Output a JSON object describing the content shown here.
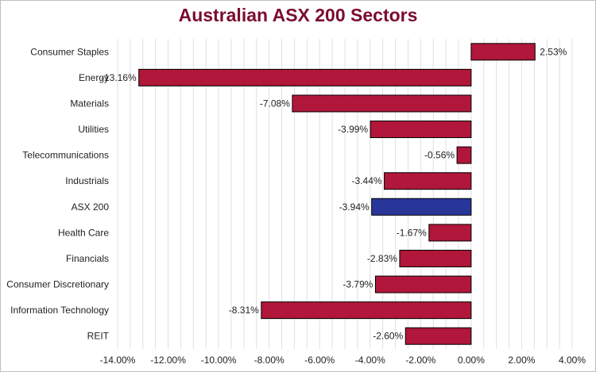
{
  "colors": {
    "bar": "#b0173a",
    "highlight": "#28369a",
    "bar_stroke": "#000000",
    "gridline": "#e0e0e0",
    "title": "#7b0c2e"
  },
  "chart_data": {
    "type": "bar",
    "orientation": "horizontal",
    "title": "Australian ASX 200 Sectors",
    "xlabel": "",
    "ylabel": "",
    "xlim": [
      -14,
      4
    ],
    "x_ticks": [
      -14,
      -12,
      -10,
      -8,
      -6,
      -4,
      -2,
      0,
      2,
      4
    ],
    "x_tick_labels": [
      "-14.00%",
      "-12.00%",
      "-10.00%",
      "-8.00%",
      "-6.00%",
      "-4.00%",
      "-2.00%",
      "0.00%",
      "2.00%",
      "4.00%"
    ],
    "grid": "vertical",
    "legend": "none",
    "categories": [
      "Consumer Staples",
      "Energy",
      "Materials",
      "Utilities",
      "Telecommunications",
      "Industrials",
      "ASX 200",
      "Health Care",
      "Financials",
      "Consumer Discretionary",
      "Information Technology",
      "REIT"
    ],
    "values": [
      2.53,
      -13.16,
      -7.08,
      -3.99,
      -0.56,
      -3.44,
      -3.94,
      -1.67,
      -2.83,
      -3.79,
      -8.31,
      -2.6
    ],
    "value_labels": [
      "2.53%",
      "-13.16%",
      "-7.08%",
      "-3.99%",
      "-0.56%",
      "-3.44%",
      "-3.94%",
      "-1.67%",
      "-2.83%",
      "-3.79%",
      "-8.31%",
      "-2.60%"
    ],
    "highlight_category": "ASX 200"
  }
}
